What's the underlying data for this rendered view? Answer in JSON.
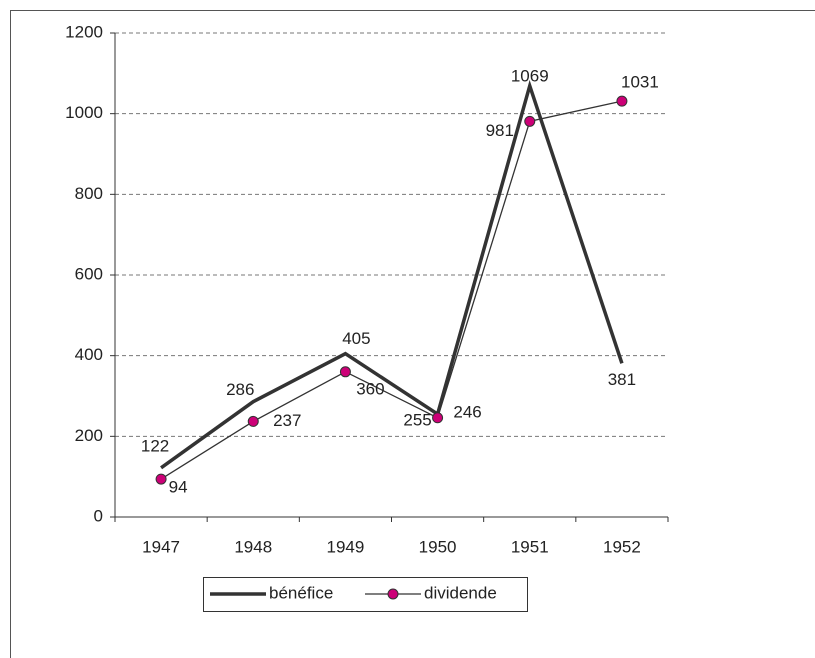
{
  "chart_data": {
    "type": "line",
    "categories": [
      "1947",
      "1948",
      "1949",
      "1950",
      "1951",
      "1952"
    ],
    "series": [
      {
        "name": "bénéfice",
        "color": "#333333",
        "values": [
          122,
          286,
          405,
          255,
          1069,
          381
        ]
      },
      {
        "name": "dividende",
        "color": "#333333",
        "marker_color": "#cc0077",
        "values": [
          94,
          237,
          360,
          246,
          981,
          1031
        ]
      }
    ],
    "ylim": [
      0,
      1200
    ],
    "yticks": [
      0,
      200,
      400,
      600,
      800,
      1000,
      1200
    ],
    "grid": true,
    "legend": "bottom"
  }
}
